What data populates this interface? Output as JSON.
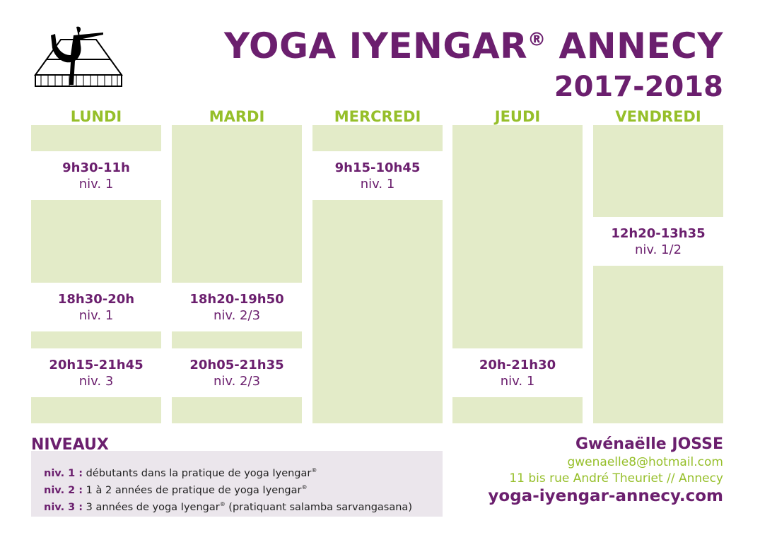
{
  "header": {
    "title": "YOGA IYENGAR",
    "title_mark": "®",
    "title_end": " ANNECY",
    "year": "2017-2018"
  },
  "colors": {
    "purple": "#6b1f6e",
    "green": "#96bf2a",
    "column_bg": "#e3ebc8",
    "levels_bg": "#ebe6ec"
  },
  "days": [
    {
      "name": "LUNDI",
      "slots": [
        {
          "time": "9h30-11h",
          "level": "niv. 1"
        },
        {
          "time": "18h30-20h",
          "level": "niv. 1"
        },
        {
          "time": "20h15-21h45",
          "level": "niv. 3"
        }
      ]
    },
    {
      "name": "MARDI",
      "slots": [
        {
          "time": "18h20-19h50",
          "level": "niv. 2/3"
        },
        {
          "time": "20h05-21h35",
          "level": "niv. 2/3"
        }
      ]
    },
    {
      "name": "MERCREDI",
      "slots": [
        {
          "time": "9h15-10h45",
          "level": "niv. 1"
        }
      ]
    },
    {
      "name": "JEUDI",
      "slots": [
        {
          "time": "20h-21h30",
          "level": "niv. 1"
        }
      ]
    },
    {
      "name": "VENDREDI",
      "slots": [
        {
          "time": "12h20-13h35",
          "level": "niv. 1/2"
        }
      ]
    }
  ],
  "levels": {
    "heading": "NIVEAUX",
    "items": [
      {
        "label": "niv. 1 :",
        "text": " débutants dans la pratique de yoga Iyengar",
        "mark": "®",
        "after": ""
      },
      {
        "label": "niv. 2 :",
        "text": " 1 à 2 années de pratique de yoga Iyengar",
        "mark": "®",
        "after": ""
      },
      {
        "label": "niv. 3 :",
        "text": " 3 années de yoga Iyengar",
        "mark": "®",
        "after": " (pratiquant salamba sarvangasana)"
      }
    ]
  },
  "contact": {
    "name": "Gwénaëlle JOSSE",
    "email": "gwenaelle8@hotmail.com",
    "address": "11 bis rue André Theuriet // Annecy",
    "website": "yoga-iyengar-annecy.com"
  }
}
